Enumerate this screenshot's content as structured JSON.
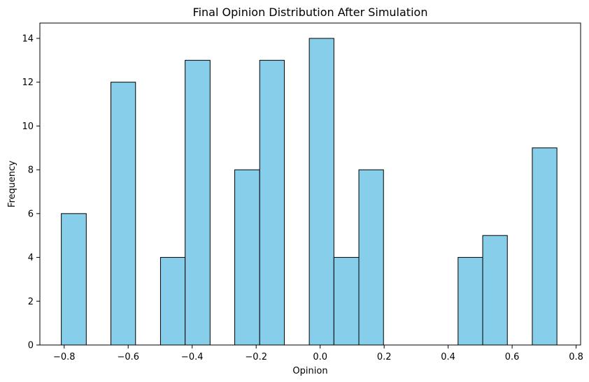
{
  "chart_data": {
    "type": "bar",
    "title": "Final Opinion Distribution After Simulation",
    "xlabel": "Opinion",
    "ylabel": "Frequency",
    "xlim": [
      -0.876,
      0.814
    ],
    "ylim": [
      0,
      14.7
    ],
    "xticks": [
      -0.8,
      -0.6,
      -0.4,
      -0.2,
      0.0,
      0.2,
      0.4,
      0.6,
      0.8
    ],
    "xtick_labels": [
      "−0.8",
      "−0.6",
      "−0.4",
      "−0.2",
      "0.0",
      "0.2",
      "0.4",
      "0.6",
      "0.8"
    ],
    "yticks": [
      0,
      2,
      4,
      6,
      8,
      10,
      12,
      14
    ],
    "ytick_labels": [
      "0",
      "2",
      "4",
      "6",
      "8",
      "10",
      "12",
      "14"
    ],
    "bin_edges": [
      -0.809,
      -0.731,
      -0.654,
      -0.577,
      -0.499,
      -0.422,
      -0.344,
      -0.267,
      -0.189,
      -0.112,
      -0.034,
      0.043,
      0.121,
      0.198,
      0.276,
      0.353,
      0.431,
      0.508,
      0.585,
      0.663,
      0.74
    ],
    "values": [
      6,
      0,
      12,
      0,
      4,
      13,
      0,
      8,
      13,
      0,
      14,
      4,
      8,
      0,
      0,
      0,
      4,
      5,
      0,
      9
    ],
    "bar_color": "#87ceeb",
    "edge_color": "#000000",
    "grid": false
  }
}
